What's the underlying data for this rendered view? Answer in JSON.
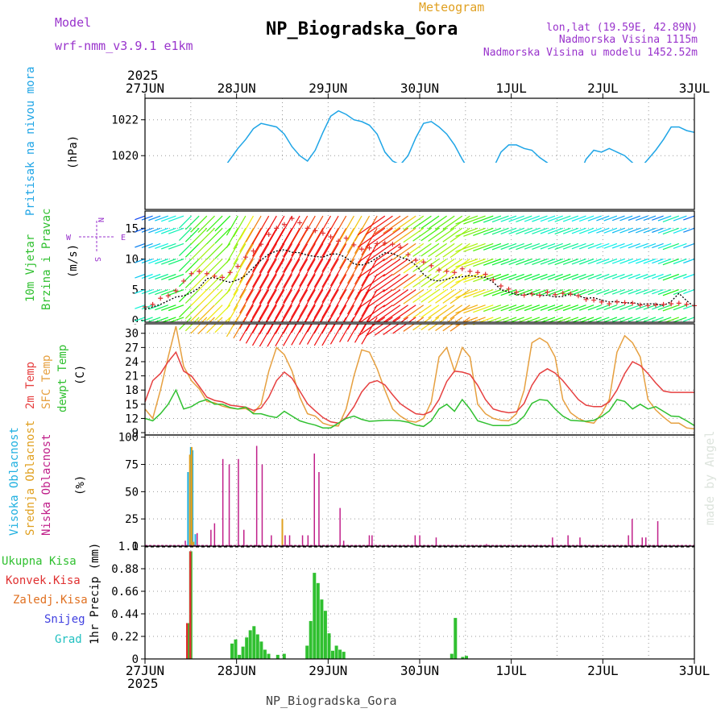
{
  "header": {
    "model_label": "Model",
    "model_name": "wrf-nmm_v3.9.1 e1km",
    "meteogram": "Meteogram",
    "station": "NP_Biogradska_Gora",
    "lonlat": "lon,lat (19.59E, 42.89N)",
    "altitude": "Nadmorska Visina 1115m",
    "model_altitude": "Nadmorska Visina u modelu 1452.52m",
    "footer_station": "NP_Biogradska_Gora",
    "credit": "made by Angel",
    "year_top": "2025",
    "year_bottom": "2025"
  },
  "colors": {
    "pressure": "#1fa5e6",
    "temp2m": "#e64040",
    "sfc": "#e6a040",
    "dewpt": "#30c030",
    "high": "#20b0e0",
    "mid": "#e0a020",
    "low": "#c0208a",
    "rain_total": "#30c030",
    "rain_conv": "#e03030",
    "sleet": "#e07020",
    "snow": "#4040e0",
    "hail": "#20c0c0",
    "title": "#000000",
    "purple": "#9933cc",
    "orange": "#e0a020"
  },
  "chart_data": {
    "type": "meteogram",
    "x_ticks": [
      "27JUN",
      "28JUN",
      "29JUN",
      "30JUN",
      "1JUL",
      "2JUL",
      "3JUL"
    ],
    "days": 6,
    "pressure": {
      "label": "Pritisak na nivou mora",
      "unit": "(hPa)",
      "ylim": [
        1017,
        1023.2
      ],
      "yticks": [
        1018,
        1020,
        1022
      ],
      "values": [
        1018.2,
        1018.7,
        1018.3,
        1018.5,
        1018.0,
        1017.6,
        1017.3,
        1018.6,
        1019.1,
        1018.6,
        1019.2,
        1019.8,
        1020.4,
        1020.9,
        1021.5,
        1021.8,
        1021.7,
        1021.6,
        1021.2,
        1020.5,
        1020.0,
        1019.7,
        1020.3,
        1021.3,
        1022.2,
        1022.5,
        1022.3,
        1022.0,
        1021.9,
        1021.7,
        1021.2,
        1020.2,
        1019.7,
        1019.5,
        1020.0,
        1021.0,
        1021.8,
        1021.9,
        1021.6,
        1021.2,
        1020.6,
        1019.8,
        1019.1,
        1018.4,
        1018.5,
        1019.3,
        1020.2,
        1020.6,
        1020.6,
        1020.4,
        1020.3,
        1019.9,
        1019.6,
        1019.1,
        1018.5,
        1018.3,
        1018.8,
        1019.8,
        1020.3,
        1020.2,
        1020.4,
        1020.2,
        1020.0,
        1019.6,
        1019.3,
        1019.8,
        1020.3,
        1020.9,
        1021.6,
        1021.6,
        1021.4,
        1021.3
      ]
    },
    "wind": {
      "label1": "10m Vjetar",
      "label2": "Brzina i Pravac",
      "unit": "(m/s)",
      "ylim": [
        -0.3,
        17.8
      ],
      "yticks": [
        0,
        5,
        10,
        15
      ],
      "compass_n": "N",
      "compass_e": "E",
      "compass_w": "W",
      "compass_s": "S",
      "speed": [
        1.8,
        2.2,
        2.6,
        3.2,
        3.8,
        4.0,
        4.5,
        5.3,
        6.8,
        7.0,
        6.5,
        6.2,
        6.6,
        7.3,
        8.6,
        9.8,
        10.8,
        11.3,
        11.5,
        11.1,
        11.0,
        10.6,
        10.4,
        10.3,
        10.8,
        10.8,
        10.2,
        9.2,
        9.0,
        9.4,
        10.2,
        11.0,
        10.9,
        10.3,
        9.9,
        9.0,
        7.5,
        6.6,
        6.4,
        6.7,
        7.0,
        7.1,
        7.3,
        7.1,
        7.0,
        6.2,
        5.0,
        4.6,
        4.2,
        4.1,
        4.4,
        4.0,
        4.1,
        3.8,
        3.9,
        4.3,
        4.0,
        3.6,
        3.7,
        3.3,
        3.0,
        3.1,
        2.8,
        2.9,
        2.6,
        2.7,
        2.7,
        2.4,
        3.1,
        4.4,
        3.2,
        2.2
      ],
      "gust": [
        2.2,
        2.6,
        3.6,
        4.0,
        4.8,
        6.4,
        7.6,
        8.0,
        7.6,
        7.2,
        7.0,
        7.8,
        8.8,
        10.3,
        11.3,
        12.4,
        14.0,
        15.0,
        15.6,
        16.6,
        15.9,
        15.0,
        14.6,
        14.2,
        13.6,
        12.9,
        13.4,
        12.3,
        11.6,
        11.8,
        12.5,
        12.6,
        12.4,
        11.9,
        10.7,
        9.8,
        9.5,
        8.9,
        8.2,
        8.0,
        7.8,
        8.4,
        8.0,
        7.8,
        7.5,
        6.6,
        5.6,
        5.1,
        4.6,
        4.1,
        4.3,
        4.1,
        4.6,
        4.2,
        4.4,
        4.3,
        4.0,
        3.4,
        3.3,
        3.0,
        2.7,
        3.0,
        2.9,
        2.8,
        2.5,
        2.4,
        2.5,
        2.6,
        2.7,
        2.8,
        2.6,
        2.4
      ]
    },
    "temp": {
      "label1": "2m Temp",
      "label2": "SFC Temp",
      "label3": "dewpt Temp",
      "unit": "(C)",
      "ylim": [
        8.5,
        32
      ],
      "yticks": [
        9,
        12,
        15,
        18,
        21,
        24,
        27,
        30
      ],
      "t2m": [
        15.5,
        20.0,
        21.5,
        24.0,
        26.0,
        22.0,
        21.0,
        18.8,
        16.5,
        15.8,
        15.5,
        14.8,
        14.6,
        14.4,
        13.7,
        14.2,
        16.5,
        20.0,
        21.8,
        20.5,
        17.8,
        15.1,
        13.6,
        12.2,
        11.3,
        11.0,
        12.2,
        14.5,
        17.6,
        19.5,
        20.0,
        19.1,
        17.0,
        15.1,
        14.0,
        13.0,
        12.8,
        13.5,
        16.0,
        19.8,
        22.0,
        21.8,
        21.3,
        19.0,
        16.0,
        14.0,
        13.5,
        13.2,
        13.4,
        15.2,
        19.0,
        21.5,
        22.5,
        21.6,
        20.0,
        18.0,
        16.0,
        14.8,
        14.5,
        14.5,
        15.5,
        18.0,
        21.5,
        24.0,
        23.2,
        21.5,
        19.5,
        17.8,
        17.5,
        17.5,
        17.5,
        17.5
      ],
      "sfc": [
        14.0,
        12.0,
        18.0,
        25.0,
        31.5,
        23.0,
        20.0,
        18.3,
        15.6,
        15.3,
        14.6,
        14.2,
        14.0,
        14.1,
        13.2,
        15.0,
        22.0,
        27.0,
        25.5,
        22.0,
        16.5,
        13.0,
        12.5,
        11.0,
        10.5,
        10.4,
        14.0,
        21.0,
        26.5,
        26.0,
        22.5,
        18.0,
        14.0,
        12.5,
        11.5,
        11.2,
        12.0,
        15.5,
        25.0,
        27.0,
        22.0,
        27.0,
        25.0,
        15.0,
        13.0,
        12.0,
        11.6,
        11.5,
        13.0,
        18.0,
        28.0,
        29.0,
        28.0,
        25.0,
        16.0,
        13.2,
        12.0,
        11.3,
        11.0,
        13.0,
        16.0,
        26.0,
        29.5,
        28.0,
        25.0,
        16.0,
        13.8,
        12.3,
        11.0,
        11.0,
        10.0,
        9.8
      ],
      "dewpt": [
        12.0,
        11.5,
        13.0,
        15.0,
        18.0,
        14.0,
        14.5,
        15.5,
        16.0,
        15.0,
        15.0,
        14.3,
        14.0,
        14.4,
        13.0,
        13.0,
        12.5,
        12.2,
        13.5,
        12.5,
        11.5,
        11.0,
        10.6,
        10.0,
        10.0,
        11.0,
        12.0,
        12.5,
        11.8,
        11.4,
        11.5,
        11.6,
        11.6,
        11.5,
        11.2,
        10.6,
        10.3,
        11.5,
        14.0,
        15.0,
        13.5,
        16.0,
        14.0,
        11.5,
        11.0,
        10.5,
        10.5,
        10.5,
        11.0,
        12.5,
        15.2,
        16.0,
        15.8,
        14.0,
        12.5,
        11.6,
        11.5,
        11.4,
        11.6,
        12.4,
        13.6,
        16.0,
        15.6,
        14.0,
        15.0,
        14.0,
        14.5,
        13.5,
        12.5,
        12.4,
        11.5,
        10.5
      ]
    },
    "cloud": {
      "label_high": "Visoka Oblacnost",
      "label_mid": "Srednja Oblacnost",
      "label_low": "Niska Oblacnost",
      "unit": "(%)",
      "ylim": [
        0,
        102
      ],
      "yticks": [
        0,
        25,
        50,
        75,
        100
      ],
      "high": [
        [
          0.47,
          68
        ],
        [
          0.5,
          91
        ],
        [
          0.52,
          88
        ],
        [
          0.55,
          11
        ]
      ],
      "mid": [
        [
          0.49,
          84
        ],
        [
          0.51,
          91
        ],
        [
          0.53,
          4
        ],
        [
          1.5,
          25
        ]
      ],
      "low": [
        [
          0.44,
          5
        ],
        [
          0.57,
          12
        ],
        [
          0.72,
          15
        ],
        [
          0.76,
          21
        ],
        [
          0.85,
          80
        ],
        [
          0.92,
          75
        ],
        [
          1.02,
          80
        ],
        [
          1.08,
          15
        ],
        [
          1.22,
          92
        ],
        [
          1.28,
          75
        ],
        [
          1.38,
          10
        ],
        [
          1.53,
          10
        ],
        [
          1.58,
          10
        ],
        [
          1.72,
          10
        ],
        [
          1.78,
          10
        ],
        [
          1.85,
          85
        ],
        [
          1.9,
          68
        ],
        [
          2.13,
          35
        ],
        [
          2.17,
          5
        ],
        [
          2.45,
          10
        ],
        [
          2.48,
          10
        ],
        [
          2.95,
          10
        ],
        [
          3.0,
          10
        ],
        [
          3.18,
          8
        ],
        [
          3.73,
          2
        ],
        [
          4.45,
          8
        ],
        [
          4.62,
          10
        ],
        [
          4.75,
          8
        ],
        [
          5.28,
          10
        ],
        [
          5.32,
          25
        ],
        [
          5.43,
          8
        ],
        [
          5.47,
          8
        ],
        [
          5.6,
          23
        ]
      ]
    },
    "precip": {
      "label_total": "Ukupna Kisa",
      "label_conv": "Konvek.Kisa",
      "label_sleet": "Zaledj.Kisa",
      "label_snow": "Snijeg",
      "label_hail": "Grad",
      "unit": "1hr Precip (mm)",
      "ylim": [
        0,
        1.1
      ],
      "yticks": [
        0,
        0.22,
        0.44,
        0.66,
        0.88,
        1.1
      ],
      "total": [
        [
          0.47,
          0.35
        ],
        [
          0.5,
          1.05
        ],
        [
          0.95,
          0.15
        ],
        [
          0.99,
          0.19
        ],
        [
          1.03,
          0.04
        ],
        [
          1.07,
          0.12
        ],
        [
          1.11,
          0.21
        ],
        [
          1.15,
          0.28
        ],
        [
          1.19,
          0.32
        ],
        [
          1.23,
          0.24
        ],
        [
          1.27,
          0.17
        ],
        [
          1.31,
          0.09
        ],
        [
          1.35,
          0.05
        ],
        [
          1.45,
          0.04
        ],
        [
          1.52,
          0.05
        ],
        [
          1.77,
          0.13
        ],
        [
          1.81,
          0.37
        ],
        [
          1.85,
          0.84
        ],
        [
          1.89,
          0.74
        ],
        [
          1.93,
          0.58
        ],
        [
          1.97,
          0.47
        ],
        [
          2.01,
          0.25
        ],
        [
          2.05,
          0.08
        ],
        [
          2.09,
          0.13
        ],
        [
          2.13,
          0.09
        ],
        [
          2.17,
          0.07
        ],
        [
          3.35,
          0.05
        ],
        [
          3.39,
          0.4
        ],
        [
          3.47,
          0.02
        ],
        [
          3.51,
          0.03
        ]
      ],
      "conv": [
        [
          0.46,
          0.35
        ],
        [
          0.495,
          1.05
        ]
      ]
    }
  }
}
